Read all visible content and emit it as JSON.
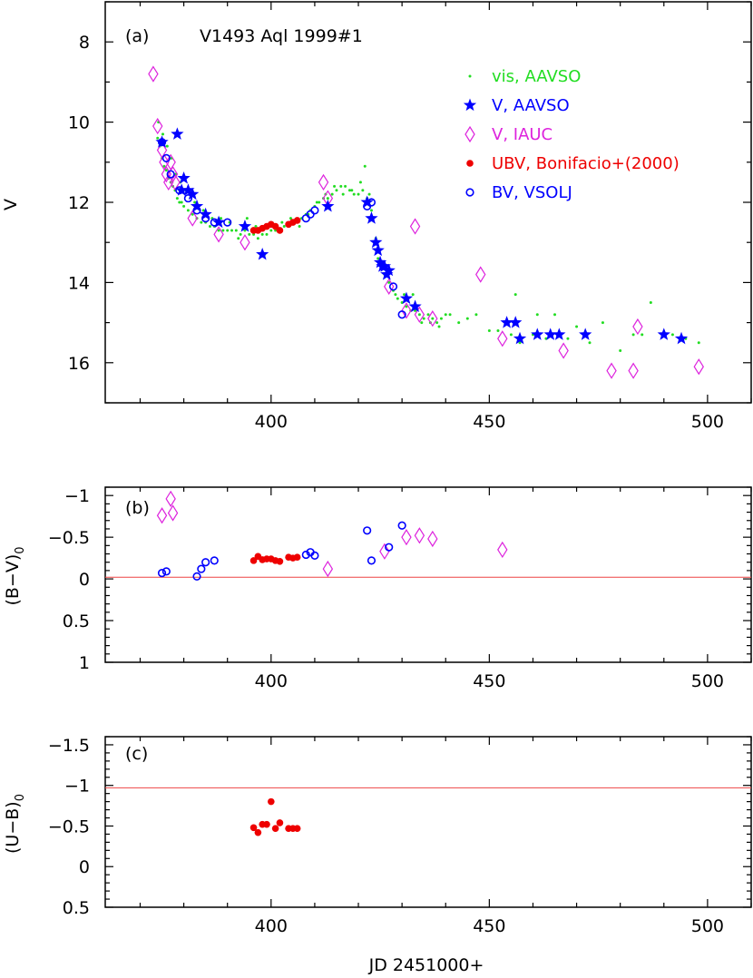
{
  "chart_data": [
    {
      "type": "scatter",
      "panel_label": "(a)",
      "title": "V1493 Aql 1999#1",
      "ylabel": "V",
      "xlim": [
        362,
        510
      ],
      "ylim": [
        17,
        7
      ],
      "xticks": [
        400,
        450,
        500
      ],
      "yticks": [
        8,
        10,
        12,
        14,
        16
      ],
      "legend_position": "top-right",
      "series": [
        {
          "name": "vis, AAVSO",
          "marker": "dot",
          "color": "#22dd22",
          "x": [
            374,
            374.5,
            375,
            375.5,
            376,
            376.5,
            377,
            377.5,
            378,
            378.5,
            379,
            379.5,
            380,
            381,
            382,
            383,
            384,
            385,
            386,
            387,
            388,
            389,
            390,
            391,
            392,
            393,
            394,
            395,
            396,
            397,
            398,
            399,
            400,
            401,
            402,
            403,
            404,
            405,
            406,
            407,
            408,
            409,
            410,
            411,
            412,
            413,
            414,
            415,
            416,
            417,
            418,
            419,
            420,
            421,
            422,
            423,
            424,
            425,
            426,
            427,
            428,
            429,
            430,
            431,
            432,
            433,
            434,
            435,
            436,
            437,
            438,
            439,
            440,
            445,
            450,
            455,
            457,
            460,
            463,
            466,
            468,
            473,
            480,
            485,
            490,
            495,
            498,
            374.2,
            375.2,
            376.2,
            377.2,
            378.2,
            379.2,
            380.5,
            382.5,
            384.5,
            386.5,
            388.5,
            390.5,
            392.5,
            394.5,
            396.5,
            398.5,
            400.5,
            402.5,
            404.5,
            406.5,
            408.5,
            410.5,
            412.5,
            414.5,
            416.5,
            418.5,
            420.5,
            421.5,
            422.5,
            424.5,
            426.5,
            428.5,
            430.5,
            432.5,
            434.5,
            436.5,
            438.5,
            441,
            443,
            447,
            452,
            456,
            461,
            465,
            470,
            476,
            483,
            487,
            492
          ],
          "y": [
            10.4,
            10.6,
            10.9,
            11.1,
            11.2,
            11.4,
            11.5,
            11.6,
            11.7,
            11.9,
            12.0,
            12.0,
            12.1,
            12.2,
            12.3,
            12.4,
            12.5,
            12.5,
            12.6,
            12.6,
            12.7,
            12.7,
            12.7,
            12.7,
            12.7,
            12.8,
            12.7,
            12.8,
            12.8,
            12.9,
            12.8,
            12.8,
            12.7,
            12.7,
            12.7,
            12.6,
            12.6,
            12.5,
            12.5,
            12.4,
            12.3,
            12.2,
            12.1,
            12.0,
            11.9,
            11.9,
            11.8,
            11.7,
            11.6,
            11.6,
            11.7,
            11.8,
            11.8,
            11.7,
            11.9,
            12.2,
            12.9,
            13.5,
            13.8,
            14.0,
            14.2,
            14.4,
            14.5,
            14.6,
            14.7,
            14.7,
            14.8,
            14.9,
            14.8,
            14.9,
            15.0,
            14.9,
            14.8,
            14.9,
            15.2,
            15.3,
            15.5,
            15.3,
            15.4,
            15.3,
            15.4,
            15.5,
            15.7,
            15.3,
            15.3,
            15.4,
            15.5,
            10.0,
            10.3,
            10.6,
            10.9,
            11.3,
            11.5,
            11.7,
            12.0,
            12.2,
            12.4,
            12.4,
            12.5,
            12.9,
            12.4,
            12.6,
            13.3,
            12.6,
            12.5,
            12.4,
            12.6,
            12.3,
            12.0,
            11.8,
            11.6,
            11.8,
            11.7,
            11.5,
            11.1,
            11.8,
            13.4,
            13.8,
            14.3,
            14.3,
            14.3,
            15.0,
            15.0,
            15.1,
            14.8,
            15.0,
            14.8,
            15.2,
            14.3,
            14.8,
            14.8,
            15.1,
            15.0,
            15.3,
            14.5,
            15.3
          ]
        },
        {
          "name": "V, AAVSO",
          "marker": "star",
          "color": "#0000ff",
          "x": [
            375,
            378.5,
            379.5,
            380,
            381,
            382,
            383,
            385,
            388,
            394,
            398,
            413,
            422,
            423,
            424,
            424.5,
            425,
            425.5,
            426,
            426.5,
            427,
            431,
            433,
            454,
            456,
            457,
            461,
            464,
            466,
            472,
            490,
            494
          ],
          "y": [
            10.5,
            10.3,
            11.7,
            11.4,
            11.7,
            11.8,
            12.1,
            12.3,
            12.5,
            12.6,
            13.3,
            12.1,
            12.0,
            12.4,
            13.0,
            13.2,
            13.5,
            13.6,
            13.6,
            13.8,
            13.7,
            14.4,
            14.6,
            15.0,
            15.0,
            15.4,
            15.3,
            15.3,
            15.3,
            15.3,
            15.3,
            15.4
          ]
        },
        {
          "name": "V, IAUC",
          "marker": "diamond",
          "color": "#dd22dd",
          "x": [
            373,
            374,
            375,
            375.5,
            376,
            376.5,
            377,
            377.5,
            378,
            382,
            388,
            394,
            412,
            413,
            427,
            431,
            433,
            434,
            437,
            448,
            453,
            467,
            478,
            483,
            484,
            498
          ],
          "y": [
            8.8,
            10.1,
            10.7,
            11.0,
            11.3,
            11.5,
            11.0,
            11.3,
            11.5,
            12.4,
            12.8,
            13.0,
            11.5,
            11.9,
            14.1,
            14.7,
            12.6,
            14.8,
            14.9,
            13.8,
            15.4,
            15.7,
            16.2,
            16.2,
            15.1,
            16.1
          ]
        },
        {
          "name": "UBV, Bonifacio+(2000)",
          "marker": "filled-circle",
          "color": "#ee0000",
          "x": [
            396,
            397,
            398,
            399,
            400,
            401,
            402,
            404,
            405,
            406
          ],
          "y": [
            12.7,
            12.7,
            12.65,
            12.6,
            12.55,
            12.6,
            12.7,
            12.55,
            12.5,
            12.45
          ]
        },
        {
          "name": "BV, VSOLJ",
          "marker": "open-circle",
          "color": "#0000ff",
          "x": [
            375,
            376,
            377,
            379,
            381,
            383,
            385,
            387,
            390,
            408,
            409,
            410,
            422,
            423,
            428,
            430
          ],
          "y": [
            10.5,
            10.9,
            11.3,
            11.7,
            11.9,
            12.2,
            12.4,
            12.5,
            12.5,
            12.4,
            12.3,
            12.2,
            12.1,
            12.0,
            14.1,
            14.8
          ]
        }
      ]
    },
    {
      "type": "scatter",
      "panel_label": "(b)",
      "ylabel_main": "(B−V)",
      "ylabel_sub": "0",
      "xlim": [
        362,
        510
      ],
      "ylim": [
        1,
        -1.1
      ],
      "xticks": [
        400,
        450,
        500
      ],
      "yticks": [
        -1,
        -0.5,
        0,
        0.5,
        1
      ],
      "ytick_labels": [
        "−1",
        "−0.5",
        "0",
        "0.5",
        "1"
      ],
      "reference_line": {
        "y": -0.02,
        "color": "#ee4444"
      },
      "series": [
        {
          "name": "BV, VSOLJ",
          "marker": "open-circle",
          "color": "#0000ff",
          "x": [
            375,
            376,
            383,
            384,
            385,
            387,
            408,
            409,
            410,
            422,
            423,
            427,
            430
          ],
          "y": [
            -0.07,
            -0.09,
            -0.03,
            -0.12,
            -0.2,
            -0.22,
            -0.29,
            -0.32,
            -0.28,
            -0.58,
            -0.22,
            -0.38,
            -0.64
          ]
        },
        {
          "name": "UBV, Bonifacio+(2000)",
          "marker": "filled-circle",
          "color": "#ee0000",
          "x": [
            396,
            397,
            398,
            399,
            400,
            401,
            402,
            404,
            405,
            406
          ],
          "y": [
            -0.22,
            -0.27,
            -0.23,
            -0.24,
            -0.24,
            -0.22,
            -0.21,
            -0.26,
            -0.25,
            -0.26
          ]
        },
        {
          "name": "V, IAUC",
          "marker": "diamond",
          "color": "#dd22dd",
          "x": [
            375,
            377,
            377.5,
            413,
            426,
            431,
            434,
            437,
            453
          ],
          "y": [
            -0.76,
            -0.96,
            -0.79,
            -0.12,
            -0.33,
            -0.5,
            -0.52,
            -0.48,
            -0.35
          ]
        }
      ]
    },
    {
      "type": "scatter",
      "panel_label": "(c)",
      "ylabel_main": "(U−B)",
      "ylabel_sub": "0",
      "xlabel": "JD 2451000+",
      "xlim": [
        362,
        510
      ],
      "ylim": [
        0.5,
        -1.6
      ],
      "xticks": [
        400,
        450,
        500
      ],
      "yticks": [
        -1.5,
        -1,
        -0.5,
        0,
        0.5
      ],
      "ytick_labels": [
        "−1.5",
        "−1",
        "−0.5",
        "0",
        "0.5"
      ],
      "reference_line": {
        "y": -0.97,
        "color": "#ee4444"
      },
      "series": [
        {
          "name": "UBV, Bonifacio+(2000)",
          "marker": "filled-circle",
          "color": "#ee0000",
          "x": [
            396,
            397,
            398,
            399,
            400,
            401,
            402,
            404,
            405,
            406
          ],
          "y": [
            -0.48,
            -0.42,
            -0.52,
            -0.52,
            -0.8,
            -0.47,
            -0.54,
            -0.47,
            -0.47,
            -0.47
          ]
        }
      ]
    }
  ]
}
